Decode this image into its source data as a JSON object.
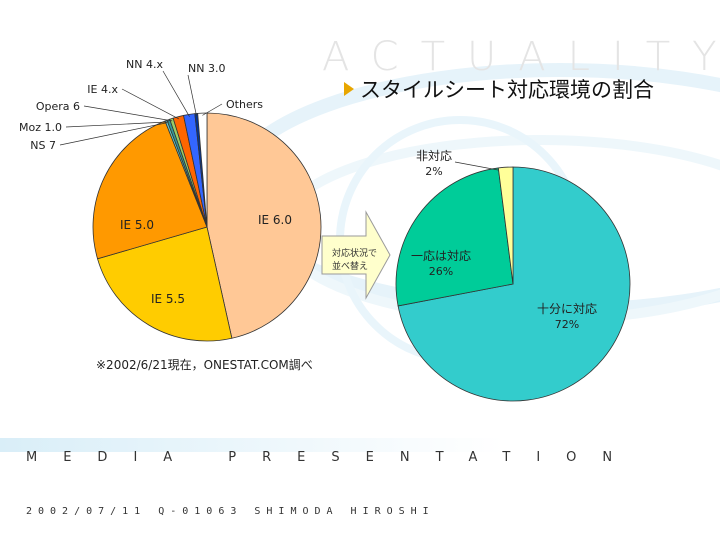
{
  "header": {
    "brand": "ACTUALITY",
    "title": "スタイルシート対応環境の割合"
  },
  "footer": {
    "media": "MEDIA PRESENTATION",
    "credit": "2002/07/11 Q-01063 SHIMODA HIROSHI"
  },
  "note": "※2002/6/21現在，ONESTAT.COM調べ",
  "arrow_label": [
    "対応状況で",
    "並べ替え"
  ],
  "colors": {
    "accent": "#e8a600",
    "band": "#d9eef8"
  },
  "chart_data": [
    {
      "type": "pie",
      "series": [
        {
          "label": "IE 6.0",
          "value": 46.5,
          "color": "#ffc896"
        },
        {
          "label": "IE 5.5",
          "value": 24.0,
          "color": "#ffcc00"
        },
        {
          "label": "IE 5.0",
          "value": 23.5,
          "color": "#ff9900"
        },
        {
          "label": "NS 7",
          "value": 0.3,
          "color": "#66cccc"
        },
        {
          "label": "Moz 1.0",
          "value": 0.4,
          "color": "#339999"
        },
        {
          "label": "Opera 6",
          "value": 0.5,
          "color": "#99cc66"
        },
        {
          "label": "IE 4.x",
          "value": 1.5,
          "color": "#ff6600"
        },
        {
          "label": "NN 4.x",
          "value": 1.6,
          "color": "#3366ff"
        },
        {
          "label": "NN 3.0",
          "value": 0.4,
          "color": "#003399"
        },
        {
          "label": "Others",
          "value": 1.3,
          "color": "#ffffff"
        }
      ]
    },
    {
      "type": "pie",
      "series": [
        {
          "label": "十分に対応",
          "pct": "72%",
          "value": 72,
          "color": "#33cccc"
        },
        {
          "label": "一応は対応",
          "pct": "26%",
          "value": 26,
          "color": "#00cc99"
        },
        {
          "label": "非対応",
          "pct": "2%",
          "value": 2,
          "color": "#ffff99"
        }
      ]
    }
  ]
}
